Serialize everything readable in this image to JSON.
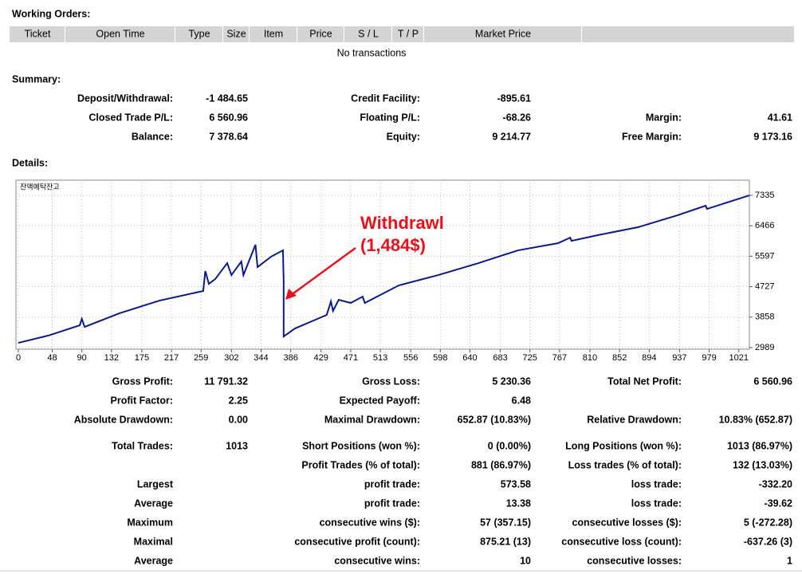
{
  "working_orders": {
    "title": "Working Orders:",
    "columns": [
      "Ticket",
      "Open Time",
      "Type",
      "Size",
      "Item",
      "Price",
      "S / L",
      "T / P",
      "Market Price"
    ],
    "empty_text": "No transactions"
  },
  "summary": {
    "title": "Summary:",
    "rows": [
      {
        "l1": "Deposit/Withdrawal:",
        "v1": "-1 484.65",
        "l2": "Credit Facility:",
        "v2": "-895.61"
      },
      {
        "l1": "Closed Trade P/L:",
        "v1": "6 560.96",
        "l2": "Floating P/L:",
        "v2": "-68.26",
        "l3": "Margin:",
        "v3": "41.61"
      },
      {
        "l1": "Balance:",
        "v1": "7 378.64",
        "l2": "Equity:",
        "v2": "9 214.77",
        "l3": "Free Margin:",
        "v3": "9 173.16"
      }
    ]
  },
  "details": {
    "title": "Details:"
  },
  "chart_data": {
    "type": "line",
    "title": "잔액예탁잔고",
    "annotations": [
      "Withdrawl",
      "(1,484$)"
    ],
    "annotation_color": "#e8101a",
    "color": "#0a1a8c",
    "grid": true,
    "x": [
      0,
      42,
      87,
      90,
      94,
      143,
      200,
      262,
      265,
      270,
      279,
      296,
      302,
      316,
      319,
      336,
      339,
      358,
      375,
      376,
      376,
      392,
      437,
      443,
      446,
      454,
      471,
      488,
      491,
      539,
      595,
      652,
      708,
      765,
      782,
      784,
      821,
      878,
      934,
      974,
      976,
      1036
    ],
    "values": [
      3125,
      3330,
      3626,
      3808,
      3580,
      3967,
      4331,
      4604,
      5173,
      4809,
      4945,
      5400,
      5059,
      5446,
      5059,
      5924,
      5287,
      5582,
      5764,
      4900,
      3307,
      3535,
      3922,
      4308,
      4036,
      4354,
      4263,
      4445,
      4263,
      4763,
      5059,
      5400,
      5764,
      5969,
      6128,
      6037,
      6197,
      6424,
      6765,
      7038,
      6947,
      7334
    ],
    "xlim": [
      0,
      1036
    ],
    "ylim": [
      2944,
      7767
    ],
    "xticks": [
      0,
      48,
      90,
      132,
      175,
      217,
      259,
      302,
      344,
      386,
      429,
      471,
      513,
      556,
      598,
      640,
      683,
      725,
      767,
      810,
      852,
      894,
      937,
      979,
      1021
    ],
    "yticks": [
      7335,
      6466,
      5597,
      4727,
      3858,
      2989
    ]
  },
  "stats": {
    "rows": [
      {
        "l1": "Gross Profit:",
        "v1": "11 791.32",
        "l2": "Gross Loss:",
        "v2": "5 230.36",
        "l3": "Total Net Profit:",
        "v3": "6 560.96"
      },
      {
        "l1": "Profit Factor:",
        "v1": "2.25",
        "l2": "Expected Payoff:",
        "v2": "6.48"
      },
      {
        "l1": "Absolute Drawdown:",
        "v1": "0.00",
        "l2": "Maximal Drawdown:",
        "v2": "652.87 (10.83%)",
        "l3": "Relative Drawdown:",
        "v3": "10.83% (652.87)"
      },
      {
        "l1": "Total Trades:",
        "v1": "1013",
        "l2": "Short Positions (won %):",
        "v2": "0 (0.00%)",
        "l3": "Long Positions (won %):",
        "v3": "1013 (86.97%)"
      },
      {
        "l2": "Profit Trades (% of total):",
        "v2": "881 (86.97%)",
        "l3": "Loss trades (% of total):",
        "v3": "132 (13.03%)"
      },
      {
        "l1": "Largest",
        "l2": "profit trade:",
        "v2": "573.58",
        "l3": "loss trade:",
        "v3": "-332.20"
      },
      {
        "l1": "Average",
        "l2": "profit trade:",
        "v2": "13.38",
        "l3": "loss trade:",
        "v3": "-39.62"
      },
      {
        "l1": "Maximum",
        "l2": "consecutive wins ($):",
        "v2": "57 (357.15)",
        "l3": "consecutive losses ($):",
        "v3": "5 (-272.28)"
      },
      {
        "l1": "Maximal",
        "l2": "consecutive profit (count):",
        "v2": "875.21 (13)",
        "l3": "consecutive loss (count):",
        "v3": "-637.26 (3)"
      },
      {
        "l1": "Average",
        "l2": "consecutive wins:",
        "v2": "10",
        "l3": "consecutive losses:",
        "v3": "1"
      }
    ]
  }
}
